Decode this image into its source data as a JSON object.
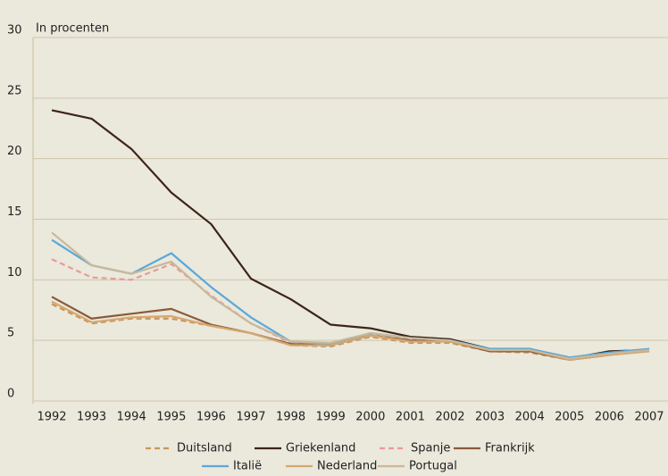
{
  "chart_data": {
    "type": "line",
    "y_label": "In procenten",
    "categories": [
      "1992",
      "1993",
      "1994",
      "1995",
      "1996",
      "1997",
      "1998",
      "1999",
      "2000",
      "2001",
      "2002",
      "2003",
      "2004",
      "2005",
      "2006",
      "2007"
    ],
    "series": [
      {
        "name": "Duitsland",
        "color": "#c8955a",
        "line_style": "dashed",
        "values": [
          8.0,
          6.4,
          6.8,
          6.8,
          6.2,
          5.6,
          4.6,
          4.5,
          5.3,
          4.8,
          4.8,
          4.1,
          4.0,
          3.4,
          3.8,
          4.2
        ]
      },
      {
        "name": "Griekenland",
        "color": "#3d2418",
        "line_style": "solid",
        "values": [
          24.0,
          23.3,
          20.8,
          17.2,
          14.6,
          10.1,
          8.4,
          6.3,
          6.0,
          5.3,
          5.1,
          4.3,
          4.3,
          3.5,
          4.1,
          4.2
        ]
      },
      {
        "name": "Spanje",
        "color": "#e89a9a",
        "line_style": "dashed",
        "values": [
          11.7,
          10.2,
          10.0,
          11.3,
          8.7,
          6.4,
          4.8,
          4.7,
          5.5,
          5.1,
          5.0,
          4.1,
          4.1,
          3.4,
          3.8,
          4.1
        ]
      },
      {
        "name": "Frankrijk",
        "color": "#8b5a3a",
        "line_style": "solid",
        "values": [
          8.6,
          6.8,
          7.2,
          7.6,
          6.3,
          5.6,
          4.7,
          4.6,
          5.4,
          5.0,
          4.9,
          4.1,
          4.1,
          3.4,
          3.8,
          4.3
        ]
      },
      {
        "name": "Italië",
        "color": "#5aa8d8",
        "line_style": "solid",
        "values": [
          13.3,
          11.2,
          10.5,
          12.2,
          9.4,
          6.9,
          4.9,
          4.7,
          5.6,
          5.2,
          5.0,
          4.3,
          4.3,
          3.6,
          4.0,
          4.3
        ]
      },
      {
        "name": "Nederland",
        "color": "#d4a870",
        "line_style": "solid",
        "values": [
          8.2,
          6.5,
          6.9,
          7.0,
          6.2,
          5.6,
          4.6,
          4.6,
          5.4,
          4.9,
          4.9,
          4.2,
          4.2,
          3.4,
          3.8,
          4.1
        ]
      },
      {
        "name": "Portugal",
        "color": "#c8b89a",
        "line_style": "solid",
        "values": [
          13.9,
          11.2,
          10.5,
          11.5,
          8.6,
          6.4,
          4.9,
          4.8,
          5.6,
          5.2,
          5.0,
          4.2,
          4.2,
          3.5,
          3.9,
          4.2
        ]
      }
    ],
    "ylim": [
      0,
      30
    ],
    "yticks": [
      0,
      5,
      10,
      15,
      20,
      25,
      30
    ],
    "grid": true
  }
}
